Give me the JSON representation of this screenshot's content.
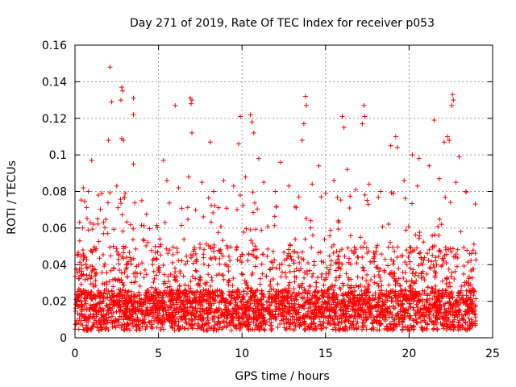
{
  "chart_data": {
    "type": "scatter",
    "title": "Day 271 of 2019, Rate Of TEC Index for receiver p053",
    "xlabel": "GPS time / hours",
    "ylabel": "ROTI / TECUs",
    "xlim": [
      0,
      25
    ],
    "ylim": [
      0,
      0.16
    ],
    "x_ticks": [
      0,
      5,
      10,
      15,
      20,
      25
    ],
    "x_tick_labels": [
      "0",
      "5",
      "10",
      "15",
      "20",
      "25"
    ],
    "y_ticks": [
      0,
      0.02,
      0.04,
      0.06,
      0.08,
      0.1,
      0.12,
      0.14,
      0.16
    ],
    "y_tick_labels": [
      "0",
      "0.02",
      "0.04",
      "0.06",
      "0.08",
      "0.1",
      "0.12",
      "0.14",
      "0.16"
    ],
    "grid": true,
    "marker": "+",
    "color": "#ff0000",
    "series": [
      {
        "name": "ROTI",
        "points": [
          [
            2.1,
            0.148
          ],
          [
            2.8,
            0.137
          ],
          [
            2.85,
            0.135
          ],
          [
            2.75,
            0.13
          ],
          [
            2.2,
            0.129
          ],
          [
            3.5,
            0.131
          ],
          [
            3.5,
            0.122
          ],
          [
            6.0,
            0.127
          ],
          [
            6.9,
            0.131
          ],
          [
            6.95,
            0.128
          ],
          [
            7.0,
            0.13
          ],
          [
            9.9,
            0.121
          ],
          [
            10.5,
            0.122
          ],
          [
            10.6,
            0.118
          ],
          [
            10.7,
            0.112
          ],
          [
            13.8,
            0.132
          ],
          [
            13.85,
            0.127
          ],
          [
            13.7,
            0.117
          ],
          [
            16.0,
            0.121
          ],
          [
            16.1,
            0.115
          ],
          [
            17.3,
            0.127
          ],
          [
            17.35,
            0.121
          ],
          [
            17.2,
            0.117
          ],
          [
            19.2,
            0.11
          ],
          [
            21.5,
            0.119
          ],
          [
            22.6,
            0.133
          ],
          [
            22.65,
            0.13
          ],
          [
            22.55,
            0.127
          ],
          [
            22.3,
            0.11
          ],
          [
            22.4,
            0.108
          ],
          [
            2.8,
            0.109
          ],
          [
            2.9,
            0.108
          ],
          [
            2.0,
            0.108
          ],
          [
            7.0,
            0.112
          ],
          [
            8.1,
            0.107
          ],
          [
            9.8,
            0.106
          ],
          [
            13.6,
            0.108
          ],
          [
            18.9,
            0.105
          ],
          [
            19.3,
            0.104
          ],
          [
            20.2,
            0.1
          ],
          [
            22.1,
            0.107
          ],
          [
            23.0,
            0.099
          ],
          [
            1.0,
            0.097
          ],
          [
            3.5,
            0.095
          ],
          [
            5.3,
            0.097
          ],
          [
            11.0,
            0.098
          ],
          [
            12.3,
            0.096
          ],
          [
            14.6,
            0.094
          ],
          [
            16.3,
            0.092
          ],
          [
            20.6,
            0.098
          ],
          [
            21.2,
            0.094
          ],
          [
            0.5,
            0.082
          ],
          [
            0.8,
            0.08
          ],
          [
            1.4,
            0.078
          ],
          [
            2.5,
            0.083
          ],
          [
            3.0,
            0.079
          ],
          [
            4.0,
            0.075
          ],
          [
            5.5,
            0.086
          ],
          [
            6.2,
            0.082
          ],
          [
            6.8,
            0.088
          ],
          [
            7.6,
            0.085
          ],
          [
            8.3,
            0.08
          ],
          [
            8.9,
            0.086
          ],
          [
            9.5,
            0.083
          ],
          [
            10.2,
            0.088
          ],
          [
            11.3,
            0.085
          ],
          [
            12.0,
            0.08
          ],
          [
            12.8,
            0.083
          ],
          [
            13.4,
            0.077
          ],
          [
            14.2,
            0.084
          ],
          [
            15.0,
            0.079
          ],
          [
            15.5,
            0.086
          ],
          [
            16.8,
            0.081
          ],
          [
            17.6,
            0.084
          ],
          [
            18.3,
            0.08
          ],
          [
            19.7,
            0.086
          ],
          [
            20.5,
            0.083
          ],
          [
            21.8,
            0.087
          ],
          [
            22.8,
            0.085
          ],
          [
            23.4,
            0.08
          ]
        ]
      }
    ]
  }
}
